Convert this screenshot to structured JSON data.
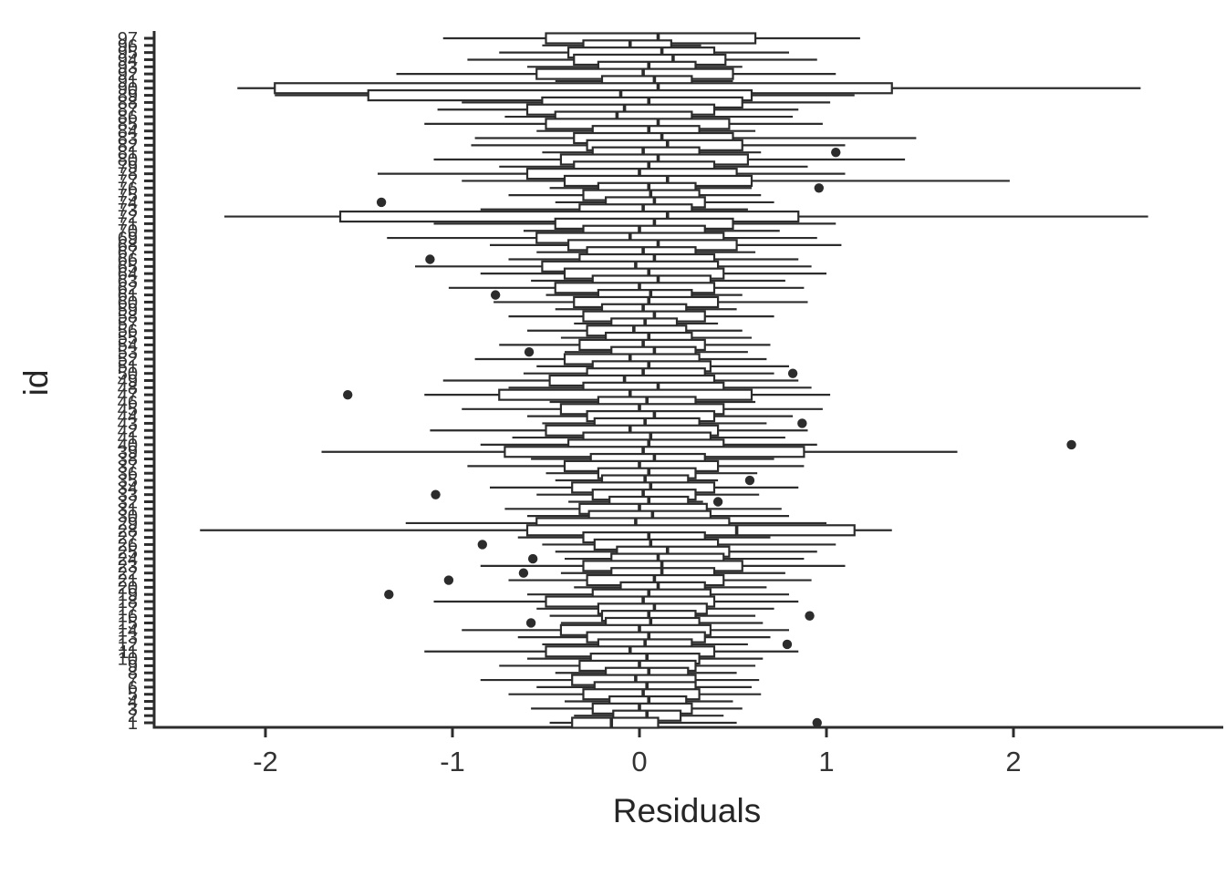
{
  "chart_data": {
    "type": "boxplot",
    "orientation": "horizontal",
    "title": "",
    "xlabel": "Residuals",
    "ylabel": "id",
    "xlim": [
      -2.6,
      3.1
    ],
    "x_ticks": [
      "-2",
      "-1",
      "0",
      "1",
      "2"
    ],
    "x_tick_values": [
      -2,
      -1,
      0,
      1,
      2
    ],
    "grid": "off",
    "legend": "none",
    "box_fill": "#ffffff",
    "ink_color": "#2c2c2c",
    "rows": [
      [
        "97",
        -1.05,
        -0.5,
        0.1,
        0.62,
        1.18
      ],
      [
        "96",
        -0.52,
        -0.3,
        -0.05,
        0.17,
        0.33
      ],
      [
        "95",
        -0.75,
        -0.38,
        0.12,
        0.4,
        0.8
      ],
      [
        "94",
        -0.92,
        -0.35,
        0.18,
        0.46,
        0.95
      ],
      [
        "93",
        -0.6,
        -0.22,
        0.05,
        0.3,
        0.55
      ],
      [
        "92",
        -1.3,
        -0.55,
        0.02,
        0.5,
        1.05
      ],
      [
        "91",
        -0.45,
        -0.2,
        0.08,
        0.28,
        0.5
      ],
      [
        "90",
        -2.15,
        -1.95,
        0.1,
        1.35,
        2.68
      ],
      [
        "89",
        -1.95,
        -1.45,
        -0.1,
        0.6,
        1.15
      ],
      [
        "88",
        -0.95,
        -0.52,
        0.05,
        0.55,
        1.02
      ],
      [
        "87",
        -1.08,
        -0.6,
        -0.08,
        0.4,
        0.85
      ],
      [
        "86",
        -0.72,
        -0.45,
        -0.12,
        0.28,
        0.82
      ],
      [
        "85",
        -1.15,
        -0.5,
        0.1,
        0.48,
        0.98
      ],
      [
        "84",
        -0.55,
        -0.25,
        0.05,
        0.32,
        0.62
      ],
      [
        "83",
        -0.88,
        -0.35,
        0.12,
        0.5,
        1.48
      ],
      [
        "82",
        -0.9,
        -0.28,
        0.15,
        0.55,
        1.1
      ],
      [
        "81",
        -0.52,
        -0.25,
        0.02,
        0.32,
        0.65
      ],
      [
        "80",
        -1.1,
        -0.42,
        0.1,
        0.58,
        1.42
      ],
      [
        "79",
        -0.75,
        -0.35,
        0.05,
        0.4,
        0.9
      ],
      [
        "78",
        -1.4,
        -0.6,
        0.0,
        0.52,
        1.1
      ],
      [
        "77",
        -0.95,
        -0.4,
        0.15,
        0.6,
        1.98
      ],
      [
        "76",
        -0.48,
        -0.22,
        0.05,
        0.3,
        0.6
      ],
      [
        "75",
        -0.7,
        -0.3,
        0.06,
        0.32,
        0.65
      ],
      [
        "74",
        -0.45,
        -0.18,
        0.08,
        0.35,
        0.72
      ],
      [
        "73",
        -0.85,
        -0.32,
        0.02,
        0.28,
        0.58
      ],
      [
        "72",
        -2.22,
        -1.6,
        0.15,
        0.85,
        2.72
      ],
      [
        "71",
        -1.1,
        -0.45,
        0.08,
        0.5,
        1.05
      ],
      [
        "70",
        -0.62,
        -0.3,
        0.0,
        0.35,
        0.75
      ],
      [
        "69",
        -1.35,
        -0.55,
        -0.05,
        0.45,
        0.95
      ],
      [
        "68",
        -0.8,
        -0.38,
        0.1,
        0.52,
        1.08
      ],
      [
        "67",
        -0.55,
        -0.28,
        0.02,
        0.3,
        0.62
      ],
      [
        "66",
        -0.7,
        -0.32,
        0.08,
        0.4,
        0.85
      ],
      [
        "65",
        -1.2,
        -0.52,
        -0.02,
        0.42,
        0.92
      ],
      [
        "64",
        -0.85,
        -0.4,
        0.05,
        0.45,
        1.0
      ],
      [
        "63",
        -0.58,
        -0.25,
        0.1,
        0.38,
        0.78
      ],
      [
        "62",
        -1.02,
        -0.45,
        0.0,
        0.4,
        0.88
      ],
      [
        "61",
        -0.5,
        -0.22,
        0.06,
        0.28,
        0.55
      ],
      [
        "60",
        -0.78,
        -0.35,
        0.05,
        0.42,
        0.9
      ],
      [
        "59",
        -0.45,
        -0.2,
        0.02,
        0.25,
        0.52
      ],
      [
        "58",
        -0.7,
        -0.3,
        0.08,
        0.35,
        0.72
      ],
      [
        "57",
        -0.35,
        -0.15,
        0.03,
        0.2,
        0.42
      ],
      [
        "56",
        -0.6,
        -0.28,
        -0.03,
        0.25,
        0.55
      ],
      [
        "55",
        -0.42,
        -0.18,
        0.05,
        0.28,
        0.6
      ],
      [
        "54",
        -0.75,
        -0.32,
        0.02,
        0.35,
        0.7
      ],
      [
        "53",
        -0.4,
        -0.15,
        0.08,
        0.3,
        0.58
      ],
      [
        "52",
        -0.88,
        -0.4,
        -0.05,
        0.32,
        0.68
      ],
      [
        "51",
        -0.55,
        -0.25,
        0.05,
        0.38,
        0.8
      ],
      [
        "50",
        -0.62,
        -0.28,
        0.02,
        0.35,
        0.72
      ],
      [
        "49",
        -1.05,
        -0.48,
        -0.08,
        0.4,
        0.85
      ],
      [
        "48",
        -0.7,
        -0.3,
        0.1,
        0.45,
        0.92
      ],
      [
        "47",
        -1.15,
        -0.75,
        -0.05,
        0.6,
        1.02
      ],
      [
        "46",
        -0.48,
        -0.22,
        0.04,
        0.3,
        0.62
      ],
      [
        "45",
        -0.95,
        -0.42,
        0.0,
        0.45,
        0.98
      ],
      [
        "44",
        -0.6,
        -0.28,
        0.08,
        0.4,
        0.82
      ],
      [
        "43",
        -0.52,
        -0.24,
        0.03,
        0.32,
        0.68
      ],
      [
        "42",
        -1.12,
        -0.5,
        -0.05,
        0.42,
        0.9
      ],
      [
        "41",
        -0.68,
        -0.3,
        0.06,
        0.38,
        0.78
      ],
      [
        "40",
        -0.85,
        -0.38,
        0.05,
        0.45,
        0.95
      ],
      [
        "39",
        -1.7,
        -0.72,
        0.02,
        0.88,
        1.7
      ],
      [
        "38",
        -0.58,
        -0.26,
        0.08,
        0.35,
        0.72
      ],
      [
        "37",
        -0.92,
        -0.4,
        0.0,
        0.42,
        0.88
      ],
      [
        "36",
        -0.5,
        -0.22,
        0.05,
        0.3,
        0.63
      ],
      [
        "35",
        -0.45,
        -0.2,
        0.03,
        0.26,
        0.42
      ],
      [
        "34",
        -0.8,
        -0.36,
        0.06,
        0.4,
        0.85
      ],
      [
        "33",
        -0.55,
        -0.25,
        0.02,
        0.3,
        0.64
      ],
      [
        "32",
        -0.38,
        -0.16,
        0.05,
        0.26,
        0.34
      ],
      [
        "31",
        -0.72,
        -0.32,
        0.0,
        0.36,
        0.76
      ],
      [
        "30",
        -0.6,
        -0.27,
        0.07,
        0.38,
        0.8
      ],
      [
        "29",
        -1.25,
        -0.55,
        -0.02,
        0.48,
        1.0
      ],
      [
        "28",
        -2.35,
        -0.6,
        0.52,
        1.15,
        1.35
      ],
      [
        "27",
        -0.65,
        -0.3,
        0.05,
        0.35,
        0.7
      ],
      [
        "26",
        -0.52,
        -0.24,
        0.06,
        0.42,
        1.05
      ],
      [
        "25",
        -0.45,
        -0.12,
        0.15,
        0.48,
        0.95
      ],
      [
        "24",
        -0.4,
        -0.15,
        0.1,
        0.45,
        0.88
      ],
      [
        "23",
        -0.85,
        -0.3,
        0.12,
        0.55,
        1.1
      ],
      [
        "22",
        -0.42,
        -0.15,
        0.12,
        0.4,
        0.78
      ],
      [
        "21",
        -0.7,
        -0.28,
        0.08,
        0.45,
        0.92
      ],
      [
        "20",
        -0.35,
        -0.1,
        0.1,
        0.35,
        0.68
      ],
      [
        "19",
        -0.6,
        -0.25,
        0.05,
        0.38,
        0.8
      ],
      [
        "18",
        -1.1,
        -0.5,
        0.02,
        0.4,
        0.85
      ],
      [
        "17",
        -0.55,
        -0.22,
        0.08,
        0.36,
        0.72
      ],
      [
        "16",
        -0.48,
        -0.2,
        0.05,
        0.3,
        0.62
      ],
      [
        "15",
        -0.42,
        -0.18,
        0.06,
        0.32,
        0.66
      ],
      [
        "14",
        -0.95,
        -0.42,
        0.0,
        0.38,
        0.8
      ],
      [
        "13",
        -0.65,
        -0.28,
        0.05,
        0.35,
        0.7
      ],
      [
        "12",
        -0.52,
        -0.22,
        0.03,
        0.28,
        0.58
      ],
      [
        "11",
        -1.15,
        -0.5,
        -0.05,
        0.4,
        0.85
      ],
      [
        "10",
        -0.6,
        -0.26,
        0.04,
        0.32,
        0.66
      ],
      [
        "9",
        -0.75,
        -0.32,
        0.0,
        0.3,
        0.62
      ],
      [
        "8",
        -0.45,
        -0.18,
        0.05,
        0.26,
        0.52
      ],
      [
        "7",
        -0.85,
        -0.36,
        -0.02,
        0.3,
        0.64
      ],
      [
        "6",
        -0.55,
        -0.24,
        0.04,
        0.3,
        0.6
      ],
      [
        "5",
        -0.7,
        -0.3,
        0.02,
        0.32,
        0.65
      ],
      [
        "4",
        -0.4,
        -0.16,
        0.05,
        0.25,
        0.5
      ],
      [
        "3",
        -0.58,
        -0.25,
        0.0,
        0.28,
        0.55
      ],
      [
        "2",
        -0.35,
        -0.14,
        0.04,
        0.22,
        0.45
      ],
      [
        "1",
        -0.48,
        -0.36,
        -0.15,
        0.1,
        0.52
      ]
    ],
    "outliers": [
      [
        "81",
        1.05
      ],
      [
        "76",
        0.96
      ],
      [
        "74",
        -1.38
      ],
      [
        "66",
        -1.12
      ],
      [
        "61",
        -0.77
      ],
      [
        "53",
        -0.59
      ],
      [
        "50",
        0.82
      ],
      [
        "47",
        -1.56
      ],
      [
        "43",
        0.87
      ],
      [
        "40",
        2.31
      ],
      [
        "35",
        0.59
      ],
      [
        "33",
        -1.09
      ],
      [
        "32",
        0.42
      ],
      [
        "26",
        -0.84
      ],
      [
        "24",
        -0.57
      ],
      [
        "22",
        -0.62
      ],
      [
        "21",
        -1.02
      ],
      [
        "19",
        -1.34
      ],
      [
        "16",
        0.91
      ],
      [
        "15",
        -0.58
      ],
      [
        "12",
        0.79
      ],
      [
        "1",
        0.95
      ]
    ]
  }
}
